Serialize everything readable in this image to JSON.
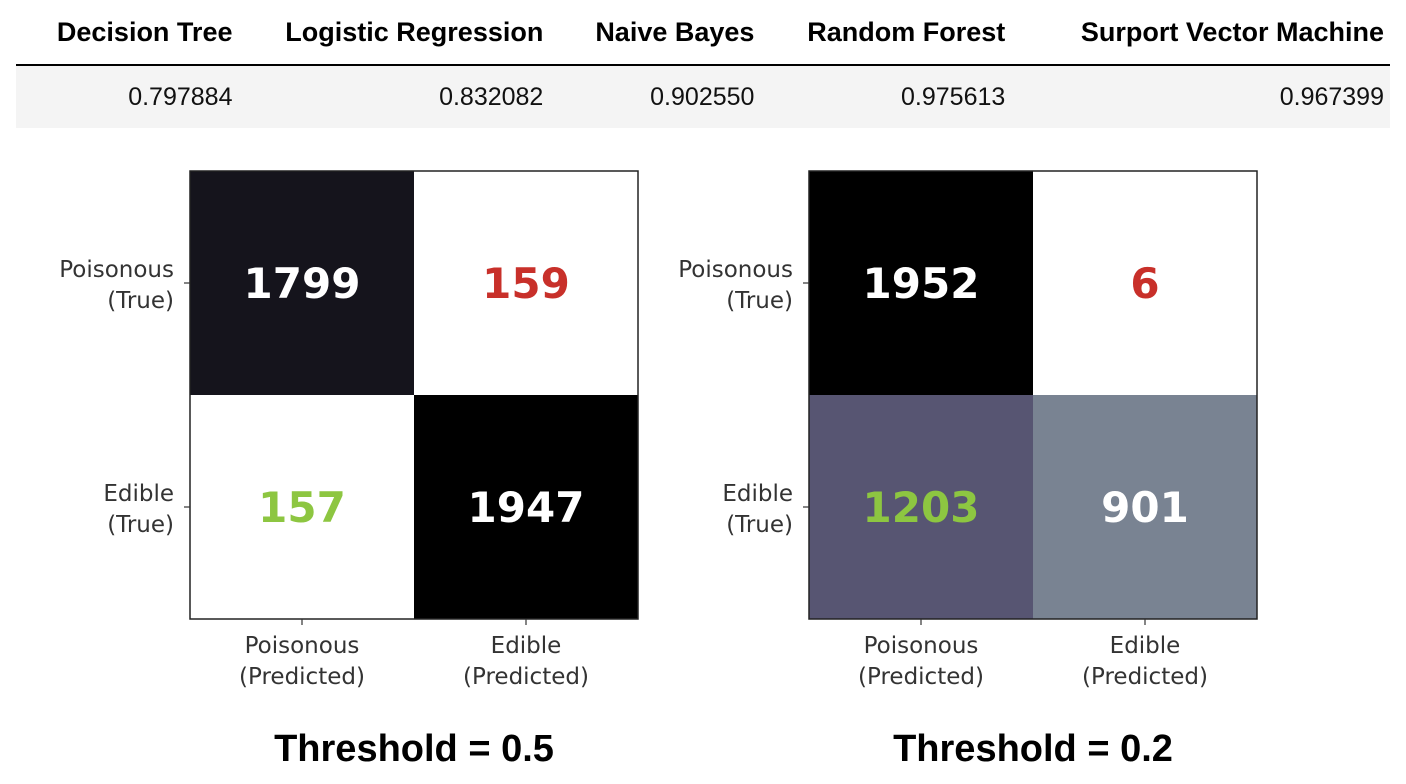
{
  "scores_table": {
    "headers": [
      "Decision Tree",
      "Logistic Regression",
      "Naive Bayes",
      "Random Forest",
      "Surport Vector Machine"
    ],
    "values": [
      "0.797884",
      "0.832082",
      "0.902550",
      "0.975613",
      "0.967399"
    ]
  },
  "chart_data": [
    {
      "type": "heatmap",
      "title": "",
      "caption": "Threshold = 0.5",
      "row_labels": [
        [
          "Poisonous",
          "(True)"
        ],
        [
          "Edible",
          "(True)"
        ]
      ],
      "col_labels": [
        [
          "Poisonous",
          "(Predicted)"
        ],
        [
          "Edible",
          "(Predicted)"
        ]
      ],
      "values": [
        [
          1799,
          159
        ],
        [
          157,
          1947
        ]
      ],
      "cell_colors": [
        [
          "#15141c",
          "#ffffff"
        ],
        [
          "#ffffff",
          "#000000"
        ]
      ],
      "text_colors": [
        [
          "#ffffff",
          "#c8302a"
        ],
        [
          "#8dc641",
          "#ffffff"
        ]
      ]
    },
    {
      "type": "heatmap",
      "title": "",
      "caption": "Threshold = 0.2",
      "row_labels": [
        [
          "Poisonous",
          "(True)"
        ],
        [
          "Edible",
          "(True)"
        ]
      ],
      "col_labels": [
        [
          "Poisonous",
          "(Predicted)"
        ],
        [
          "Edible",
          "(Predicted)"
        ]
      ],
      "values": [
        [
          1952,
          6
        ],
        [
          1203,
          901
        ]
      ],
      "cell_colors": [
        [
          "#000000",
          "#ffffff"
        ],
        [
          "#575572",
          "#798392"
        ]
      ],
      "text_colors": [
        [
          "#ffffff",
          "#c8302a"
        ],
        [
          "#8dc641",
          "#ffffff"
        ]
      ]
    }
  ]
}
